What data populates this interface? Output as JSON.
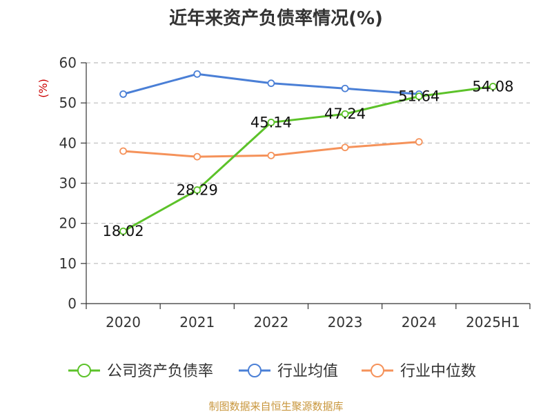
{
  "chart_data": {
    "type": "line",
    "title": "近年来资产负债率情况(%)",
    "unit_label": "(%)",
    "categories": [
      "2020",
      "2021",
      "2022",
      "2023",
      "2024",
      "2025H1"
    ],
    "ylim": [
      0,
      60
    ],
    "yticks": [
      0,
      10,
      20,
      30,
      40,
      50,
      60
    ],
    "grid": true,
    "legend_position": "bottom",
    "series": [
      {
        "name": "公司资产负债率",
        "color": "#5cc229",
        "values": [
          18.02,
          28.29,
          45.14,
          47.24,
          51.64,
          54.08
        ],
        "labels": [
          "18.02",
          "28.29",
          "45.14",
          "47.24",
          "51.64",
          "54.08"
        ]
      },
      {
        "name": "行业均值",
        "color": "#4a7fd6",
        "values": [
          52.2,
          57.2,
          54.9,
          53.6,
          52.2,
          null
        ]
      },
      {
        "name": "行业中位数",
        "color": "#f5925a",
        "values": [
          38.0,
          36.6,
          36.9,
          38.9,
          40.3,
          null
        ]
      }
    ]
  },
  "source_note": "制图数据来自恒生聚源数据库",
  "colors": {
    "unit_label": "#cc0000",
    "axis": "#333333",
    "grid": "#bbbbbb"
  }
}
